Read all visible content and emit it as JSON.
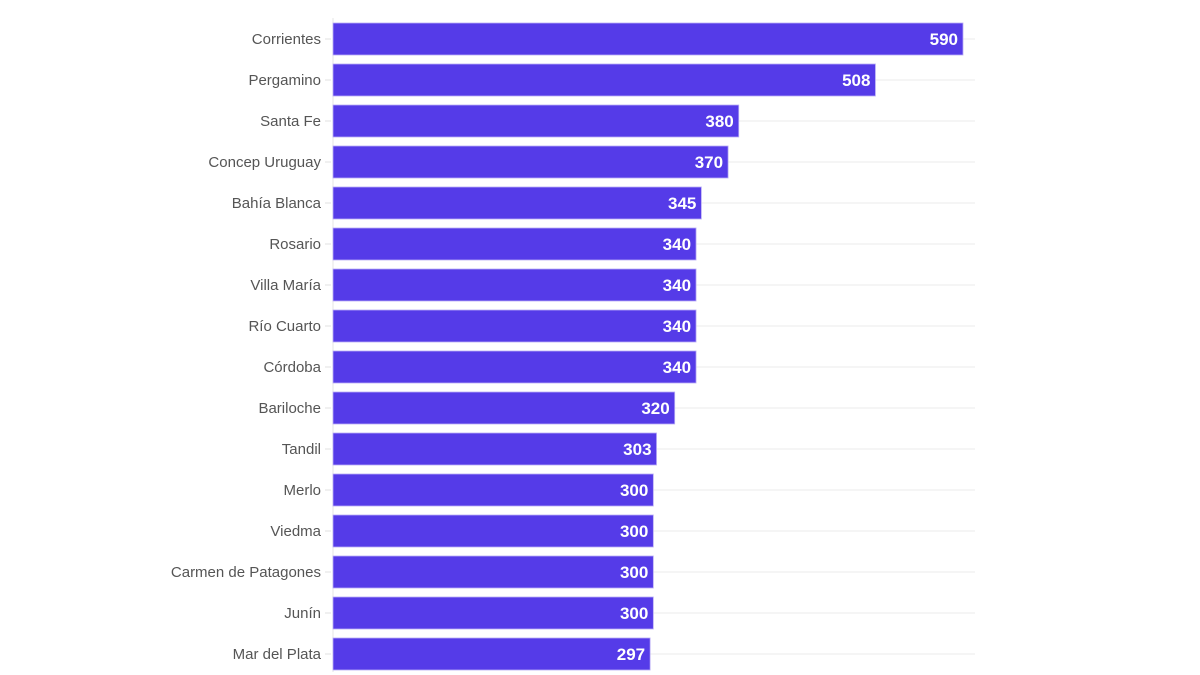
{
  "chart_data": {
    "type": "bar",
    "orientation": "horizontal",
    "title": "",
    "xlabel": "",
    "ylabel": "",
    "xlim": [
      0,
      590
    ],
    "grid": true,
    "bar_color": "#553be8",
    "categories": [
      "Corrientes",
      "Pergamino",
      "Santa Fe",
      "Concep Uruguay",
      "Bahía Blanca",
      "Rosario",
      "Villa María",
      "Río Cuarto",
      "Córdoba",
      "Bariloche",
      "Tandil",
      "Merlo",
      "Viedma",
      "Carmen de Patagones",
      "Junín",
      "Mar del Plata"
    ],
    "values": [
      590,
      508,
      380,
      370,
      345,
      340,
      340,
      340,
      340,
      320,
      303,
      300,
      300,
      300,
      300,
      297
    ]
  }
}
